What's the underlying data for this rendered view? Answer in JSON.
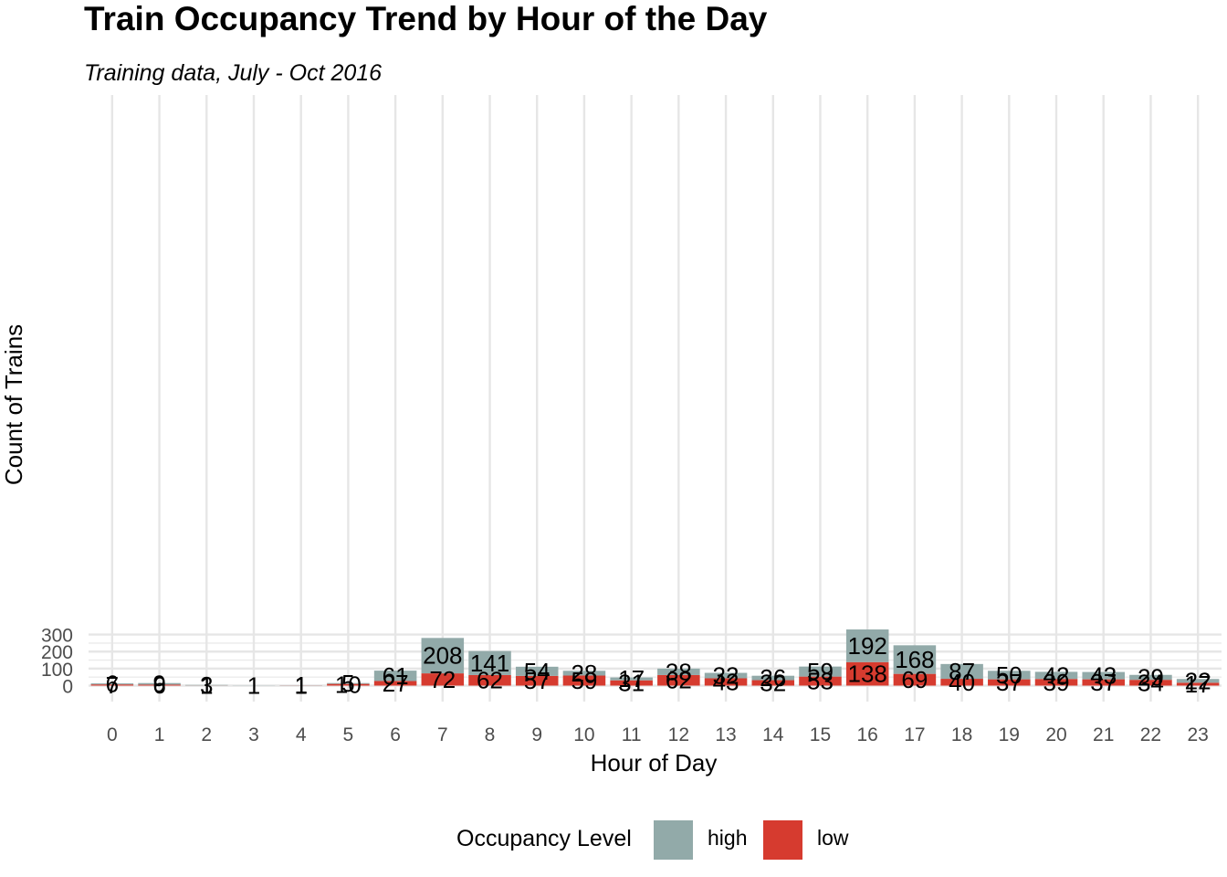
{
  "chart_data": {
    "type": "bar",
    "stacked": true,
    "title": "Train Occupancy Trend by Hour of the Day",
    "subtitle": "Training data, July - Oct 2016",
    "xlabel": "Hour of Day",
    "ylabel": "Count of Trains",
    "categories": [
      "0",
      "1",
      "2",
      "3",
      "4",
      "5",
      "6",
      "7",
      "8",
      "9",
      "10",
      "11",
      "12",
      "13",
      "14",
      "15",
      "16",
      "17",
      "18",
      "19",
      "20",
      "21",
      "22",
      "23"
    ],
    "yticks": [
      0,
      100,
      200,
      300
    ],
    "ylim": [
      0,
      340
    ],
    "grid": true,
    "legend_title": "Occupancy Level",
    "legend_position": "bottom",
    "series": [
      {
        "name": "low",
        "color": "#d63b2f",
        "values": [
          7,
          6,
          1,
          0,
          1,
          10,
          27,
          72,
          62,
          57,
          59,
          31,
          62,
          43,
          32,
          53,
          138,
          69,
          40,
          37,
          39,
          37,
          34,
          17
        ]
      },
      {
        "name": "high",
        "color": "#92aaa9",
        "values": [
          6,
          9,
          3,
          1,
          1,
          5,
          61,
          208,
          141,
          54,
          28,
          17,
          38,
          32,
          26,
          59,
          192,
          168,
          87,
          50,
          42,
          43,
          29,
          22
        ]
      }
    ]
  }
}
